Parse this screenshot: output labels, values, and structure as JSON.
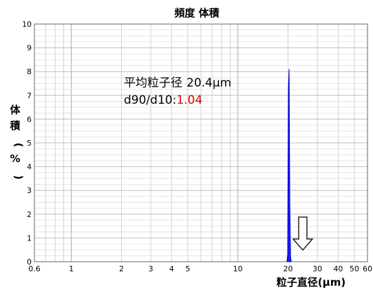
{
  "chart_data": {
    "type": "area",
    "title": "頻度 体積",
    "xlabel": "粒子直径(μm)",
    "ylabel": [
      "体",
      "積",
      "(",
      "%",
      ")"
    ],
    "x_scale": "log",
    "xlim": [
      0.6,
      60
    ],
    "ylim": [
      0,
      10
    ],
    "x_ticks": [
      0.6,
      1,
      2,
      3,
      4,
      5,
      10,
      20,
      30,
      40,
      50,
      60
    ],
    "x_tick_labels": [
      "0.6",
      "1",
      "2",
      "3",
      "4",
      "5",
      "10",
      "20",
      "30",
      "40",
      "50",
      "60"
    ],
    "y_ticks": [
      0,
      1,
      2,
      3,
      4,
      5,
      6,
      7,
      8,
      9,
      10
    ],
    "y_tick_labels": [
      "0",
      "1",
      "2",
      "3",
      "4",
      "5",
      "6",
      "7",
      "8",
      "9",
      "10"
    ],
    "grid": true,
    "series": [
      {
        "color": "#1a1aff",
        "x": [
          19.7,
          19.9,
          20.1,
          20.3,
          20.5,
          20.7,
          20.9,
          21.1
        ],
        "y": [
          0,
          0.3,
          7.3,
          8.1,
          2.5,
          0.2,
          0,
          0
        ]
      }
    ],
    "annotations": {
      "mean_label": "平均粒子径",
      "mean_value": "20.4μm",
      "ratio_label": "d90/d10:",
      "ratio_value": "1.04",
      "ratio_color": "#e00000"
    }
  }
}
